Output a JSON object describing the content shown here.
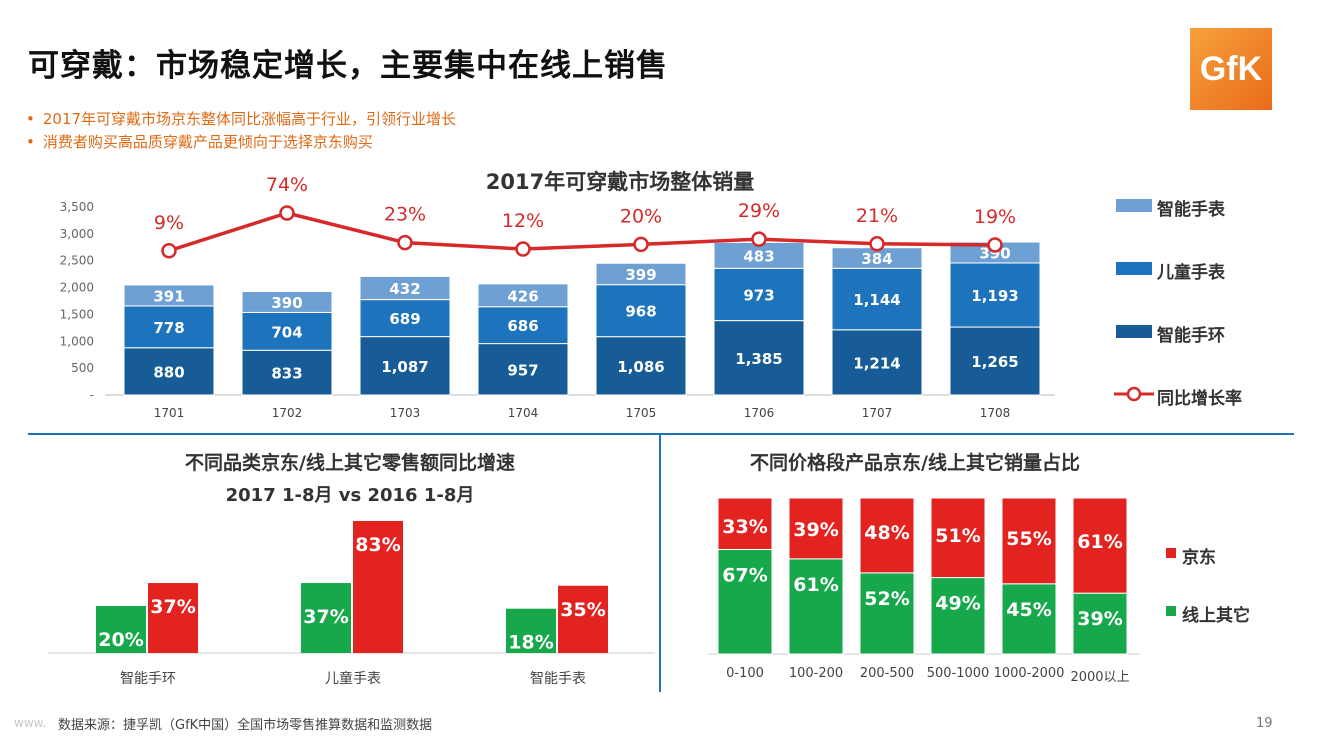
{
  "header": {
    "title": "可穿戴：市场稳定增长，主要集中在线上销售",
    "logo_text": "GfK",
    "bullets": [
      "2017年可穿戴市场京东整体同比涨幅高于行业，引领行业增长",
      "消费者购买高品质穿戴产品更倾向于选择京东购买"
    ]
  },
  "footer": {
    "source": "数据来源：捷孚凯（GfK中国）全国市场零售推算数据和监测数据",
    "page": "19",
    "watermark": "www."
  },
  "colors": {
    "smartwatch": "#6fa0d4",
    "kids_watch": "#1d74bc",
    "band": "#175c97",
    "growth_line": "#d62a2a",
    "jd": "#e2231f",
    "other_online": "#16a84a",
    "accent": "#e06a14"
  },
  "chart_data": [
    {
      "type": "bar",
      "stacked": true,
      "title": "2017年可穿戴市场整体销量",
      "categories": [
        "1701",
        "1702",
        "1703",
        "1704",
        "1705",
        "1706",
        "1707",
        "1708"
      ],
      "series": [
        {
          "name": "智能手环",
          "values": [
            880,
            833,
            1087,
            957,
            1086,
            1385,
            1214,
            1265
          ],
          "labels": [
            "880",
            "833",
            "1,087",
            "957",
            "1,086",
            "1,385",
            "1,214",
            "1,265"
          ]
        },
        {
          "name": "儿童手表",
          "values": [
            778,
            704,
            689,
            686,
            968,
            973,
            1144,
            1193
          ],
          "labels": [
            "778",
            "704",
            "689",
            "686",
            "968",
            "973",
            "1,144",
            "1,193"
          ]
        },
        {
          "name": "智能手表",
          "values": [
            391,
            390,
            432,
            426,
            399,
            483,
            384,
            390
          ],
          "labels": [
            "391",
            "390",
            "432",
            "426",
            "399",
            "483",
            "384",
            "390"
          ]
        }
      ],
      "line_series": {
        "name": "同比增长率",
        "values": [
          9,
          74,
          23,
          12,
          20,
          29,
          21,
          19
        ],
        "labels": [
          "9%",
          "74%",
          "23%",
          "12%",
          "20%",
          "29%",
          "21%",
          "19%"
        ]
      },
      "y_ticks": [
        "3,500",
        "3,000",
        "2,500",
        "2,000",
        "1,500",
        "1,000",
        "500",
        "-"
      ],
      "ylim": [
        0,
        3500
      ],
      "legend": [
        "智能手表",
        "儿童手表",
        "智能手环",
        "同比增长率"
      ],
      "legend_position": "right"
    },
    {
      "type": "bar",
      "title": "不同品类京东/线上其它零售额同比增速",
      "subtitle": "2017 1-8月 vs 2016 1-8月",
      "categories": [
        "智能手环",
        "儿童手表",
        "智能手表"
      ],
      "series": [
        {
          "name": "线上其它",
          "values": [
            20,
            37,
            18
          ],
          "labels": [
            "20%",
            "37%",
            "18%"
          ]
        },
        {
          "name": "京东",
          "values": [
            37,
            83,
            35
          ],
          "labels": [
            "37%",
            "83%",
            "35%"
          ]
        }
      ],
      "unit": "%"
    },
    {
      "type": "bar",
      "stacked": true,
      "percent": true,
      "title": "不同价格段产品京东/线上其它销量占比",
      "categories": [
        "0-100",
        "100-200",
        "200-500",
        "500-1000",
        "1000-2000",
        "2000以上"
      ],
      "series": [
        {
          "name": "线上其它",
          "values": [
            67,
            61,
            52,
            49,
            45,
            39
          ],
          "labels": [
            "67%",
            "61%",
            "52%",
            "49%",
            "45%",
            "39%"
          ]
        },
        {
          "name": "京东",
          "values": [
            33,
            39,
            48,
            51,
            55,
            61
          ],
          "labels": [
            "33%",
            "39%",
            "48%",
            "51%",
            "55%",
            "61%"
          ]
        }
      ],
      "legend": [
        "京东",
        "线上其它"
      ],
      "legend_position": "right"
    }
  ]
}
